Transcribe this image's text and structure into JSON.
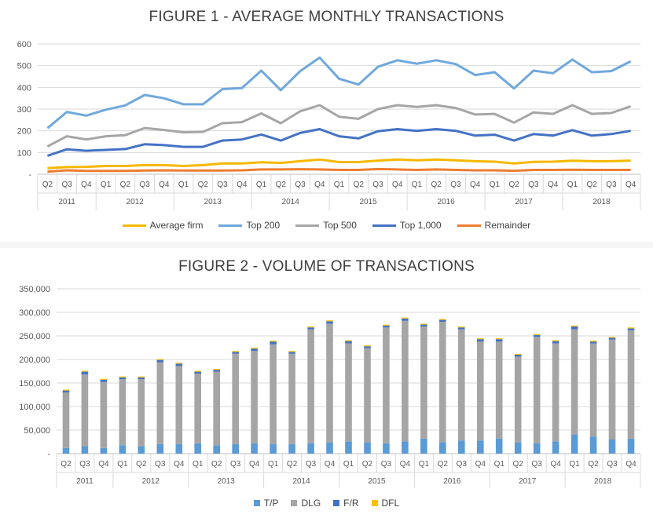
{
  "chart_data": [
    {
      "type": "line",
      "title": "FIGURE 1 - AVERAGE MONTHLY TRANSACTIONS",
      "xlabel": "",
      "ylabel": "",
      "ylim": [
        0,
        600
      ],
      "yticks": [
        "-",
        "100",
        "200",
        "300",
        "400",
        "500",
        "600"
      ],
      "grid": "horizontal",
      "legend_position": "bottom",
      "quarters": [
        "Q2",
        "Q3",
        "Q4",
        "Q1",
        "Q2",
        "Q3",
        "Q4",
        "Q1",
        "Q2",
        "Q3",
        "Q4",
        "Q1",
        "Q2",
        "Q3",
        "Q4",
        "Q1",
        "Q2",
        "Q3",
        "Q4",
        "Q1",
        "Q2",
        "Q3",
        "Q4",
        "Q1",
        "Q2",
        "Q3",
        "Q4",
        "Q1",
        "Q2",
        "Q3",
        "Q4"
      ],
      "years": [
        {
          "label": "2011",
          "count": 3
        },
        {
          "label": "2012",
          "count": 4
        },
        {
          "label": "2013",
          "count": 4
        },
        {
          "label": "2014",
          "count": 4
        },
        {
          "label": "2015",
          "count": 4
        },
        {
          "label": "2016",
          "count": 4
        },
        {
          "label": "2017",
          "count": 4
        },
        {
          "label": "2018",
          "count": 4
        }
      ],
      "series": [
        {
          "name": "Average firm",
          "color": "#f5b800",
          "values": [
            28,
            33,
            34,
            38,
            38,
            42,
            42,
            38,
            42,
            50,
            50,
            55,
            52,
            60,
            68,
            56,
            56,
            63,
            68,
            64,
            68,
            64,
            60,
            58,
            50,
            57,
            58,
            62,
            60,
            60,
            63
          ]
        },
        {
          "name": "Top 200",
          "color": "#6fa8dc",
          "values": [
            212,
            287,
            270,
            297,
            317,
            365,
            350,
            322,
            322,
            392,
            397,
            477,
            387,
            475,
            537,
            440,
            413,
            495,
            525,
            509,
            525,
            507,
            457,
            470,
            395,
            477,
            465,
            528,
            470,
            475,
            520
          ]
        },
        {
          "name": "Top 500",
          "color": "#a6a6a6",
          "values": [
            128,
            175,
            160,
            175,
            180,
            213,
            204,
            193,
            195,
            235,
            240,
            280,
            235,
            290,
            318,
            265,
            255,
            300,
            318,
            310,
            318,
            305,
            275,
            278,
            238,
            285,
            278,
            318,
            278,
            282,
            313
          ]
        },
        {
          "name": "Top 1,000",
          "color": "#4472c4",
          "values": [
            85,
            115,
            108,
            112,
            116,
            138,
            134,
            126,
            126,
            155,
            160,
            183,
            155,
            190,
            208,
            175,
            165,
            198,
            208,
            200,
            208,
            200,
            178,
            182,
            155,
            185,
            178,
            203,
            178,
            185,
            200
          ]
        },
        {
          "name": "Remainder",
          "color": "#ed7d31",
          "values": [
            12,
            18,
            15,
            15,
            15,
            17,
            18,
            17,
            17,
            17,
            18,
            22,
            22,
            23,
            22,
            20,
            20,
            24,
            22,
            20,
            22,
            20,
            18,
            18,
            16,
            20,
            20,
            21,
            20,
            20,
            20
          ]
        }
      ]
    },
    {
      "type": "bar",
      "stacked": true,
      "title": "FIGURE 2 - VOLUME OF TRANSACTIONS",
      "xlabel": "",
      "ylabel": "",
      "ylim": [
        0,
        350000
      ],
      "yticks": [
        "-",
        "50,000",
        "100,000",
        "150,000",
        "200,000",
        "250,000",
        "300,000",
        "350,000"
      ],
      "grid": "horizontal",
      "legend_position": "bottom",
      "quarters": [
        "Q2",
        "Q3",
        "Q4",
        "Q1",
        "Q2",
        "Q3",
        "Q4",
        "Q1",
        "Q2",
        "Q3",
        "Q4",
        "Q1",
        "Q2",
        "Q3",
        "Q4",
        "Q1",
        "Q2",
        "Q3",
        "Q4",
        "Q1",
        "Q2",
        "Q3",
        "Q4",
        "Q1",
        "Q2",
        "Q3",
        "Q4",
        "Q1",
        "Q2",
        "Q3",
        "Q4"
      ],
      "years": [
        {
          "label": "2011",
          "count": 3
        },
        {
          "label": "2012",
          "count": 4
        },
        {
          "label": "2013",
          "count": 4
        },
        {
          "label": "2014",
          "count": 4
        },
        {
          "label": "2015",
          "count": 4
        },
        {
          "label": "2016",
          "count": 4
        },
        {
          "label": "2017",
          "count": 4
        },
        {
          "label": "2018",
          "count": 4
        }
      ],
      "series": [
        {
          "name": "T/P",
          "color": "#5b9bd5",
          "values": [
            12000,
            16000,
            12000,
            18000,
            16000,
            20000,
            20000,
            22000,
            18000,
            20000,
            22000,
            20000,
            20000,
            22000,
            24000,
            26000,
            24000,
            22000,
            26000,
            32000,
            24000,
            28000,
            28000,
            32000,
            24000,
            22000,
            26000,
            40000,
            36000,
            30000,
            32000
          ]
        },
        {
          "name": "DLG",
          "color": "#a5a5a5",
          "values": [
            118000,
            152000,
            140000,
            140000,
            142000,
            174000,
            166000,
            148000,
            156000,
            192000,
            196000,
            212000,
            192000,
            242000,
            252000,
            208000,
            200000,
            246000,
            256000,
            238000,
            256000,
            236000,
            210000,
            206000,
            182000,
            226000,
            208000,
            224000,
            198000,
            212000,
            230000
          ]
        },
        {
          "name": "F/R",
          "color": "#4472c4",
          "values": [
            4000,
            6000,
            5000,
            4000,
            4000,
            5000,
            5000,
            4000,
            4000,
            4000,
            5000,
            6000,
            4000,
            4000,
            5000,
            5000,
            4000,
            4000,
            5000,
            4000,
            4000,
            4000,
            5000,
            5000,
            4000,
            4000,
            5000,
            6000,
            4000,
            4000,
            4000
          ]
        },
        {
          "name": "DFL",
          "color": "#ffc000",
          "values": [
            2000,
            2000,
            2000,
            2000,
            2000,
            2000,
            2000,
            2000,
            2000,
            2000,
            2000,
            2000,
            2000,
            2000,
            2000,
            2000,
            2000,
            2000,
            2000,
            2000,
            2000,
            2000,
            2000,
            2000,
            2000,
            2000,
            2000,
            2000,
            2000,
            2000,
            2000
          ]
        }
      ]
    }
  ]
}
